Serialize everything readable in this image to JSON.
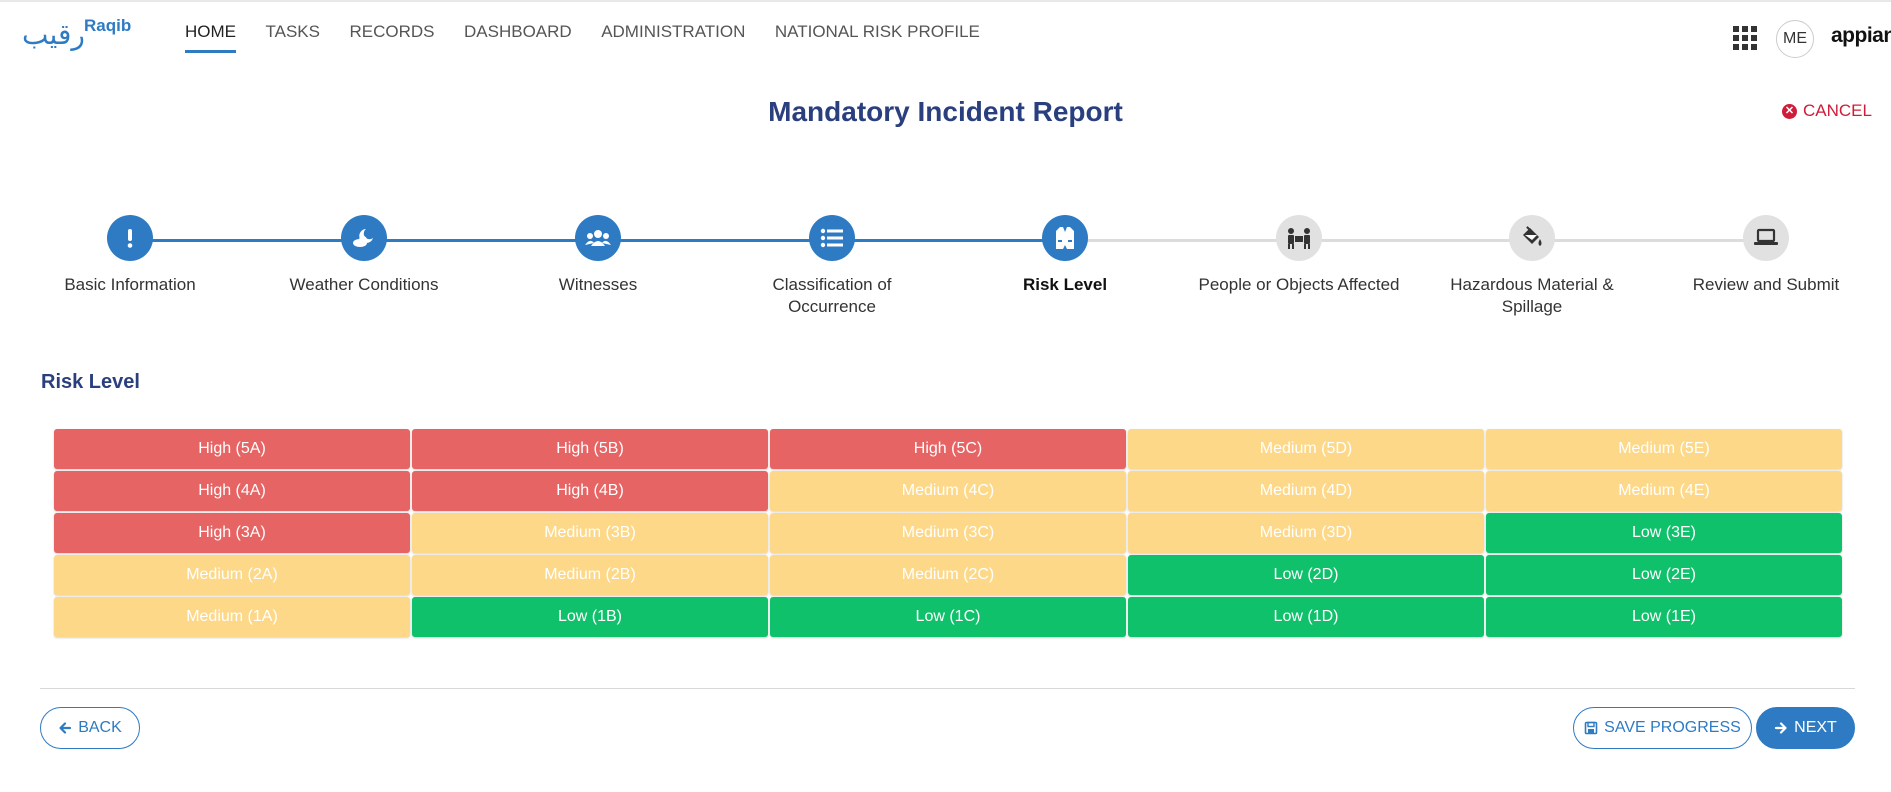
{
  "header": {
    "logo_arabic": "رقيب",
    "logo_latin": "Raqib",
    "nav": [
      "HOME",
      "TASKS",
      "RECORDS",
      "DASHBOARD",
      "ADMINISTRATION",
      "NATIONAL RISK PROFILE"
    ],
    "active_nav": "HOME",
    "avatar_initials": "ME",
    "brand": "appian",
    "apps_icon": "grid-icon"
  },
  "page": {
    "title": "Mandatory Incident Report",
    "cancel_label": "CANCEL",
    "cancel_icon": "close-circle-icon"
  },
  "stepper": {
    "current_step": 5,
    "steps": [
      {
        "label": "Basic Information",
        "icon": "exclamation-icon",
        "status": "done"
      },
      {
        "label": "Weather Conditions",
        "icon": "moon-cloud-icon",
        "status": "done"
      },
      {
        "label": "Witnesses",
        "icon": "users-icon",
        "status": "done"
      },
      {
        "label": "Classification of Occurrence",
        "icon": "list-icon",
        "status": "done"
      },
      {
        "label": "Risk Level",
        "icon": "vest-icon",
        "status": "current"
      },
      {
        "label": "People or Objects Affected",
        "icon": "people-carry-icon",
        "status": "todo"
      },
      {
        "label": "Hazardous Material & Spillage",
        "icon": "paint-bucket-icon",
        "status": "todo"
      },
      {
        "label": "Review and Submit",
        "icon": "laptop-icon",
        "status": "todo"
      }
    ]
  },
  "risk": {
    "section_title": "Risk Level",
    "colors": {
      "High": "#e76464",
      "Medium": "#fdd888",
      "Low": "#0fc16a"
    },
    "rows": [
      [
        {
          "label": "High (5A)",
          "level": "High"
        },
        {
          "label": "High (5B)",
          "level": "High"
        },
        {
          "label": "High (5C)",
          "level": "High"
        },
        {
          "label": "Medium (5D)",
          "level": "Medium"
        },
        {
          "label": "Medium (5E)",
          "level": "Medium"
        }
      ],
      [
        {
          "label": "High (4A)",
          "level": "High"
        },
        {
          "label": "High (4B)",
          "level": "High"
        },
        {
          "label": "Medium (4C)",
          "level": "Medium"
        },
        {
          "label": "Medium (4D)",
          "level": "Medium"
        },
        {
          "label": "Medium (4E)",
          "level": "Medium"
        }
      ],
      [
        {
          "label": "High (3A)",
          "level": "High"
        },
        {
          "label": "Medium (3B)",
          "level": "Medium"
        },
        {
          "label": "Medium (3C)",
          "level": "Medium"
        },
        {
          "label": "Medium (3D)",
          "level": "Medium"
        },
        {
          "label": "Low (3E)",
          "level": "Low"
        }
      ],
      [
        {
          "label": "Medium (2A)",
          "level": "Medium"
        },
        {
          "label": "Medium (2B)",
          "level": "Medium"
        },
        {
          "label": "Medium (2C)",
          "level": "Medium"
        },
        {
          "label": "Low (2D)",
          "level": "Low"
        },
        {
          "label": "Low (2E)",
          "level": "Low"
        }
      ],
      [
        {
          "label": "Medium (1A)",
          "level": "Medium"
        },
        {
          "label": "Low (1B)",
          "level": "Low"
        },
        {
          "label": "Low (1C)",
          "level": "Low"
        },
        {
          "label": "Low (1D)",
          "level": "Low"
        },
        {
          "label": "Low (1E)",
          "level": "Low"
        }
      ]
    ]
  },
  "footer": {
    "back_label": "BACK",
    "save_label": "SAVE PROGRESS",
    "next_label": "NEXT"
  },
  "theme": {
    "accent": "#2e7bc4",
    "title": "#2a3f7e",
    "danger": "#d01c3a"
  }
}
